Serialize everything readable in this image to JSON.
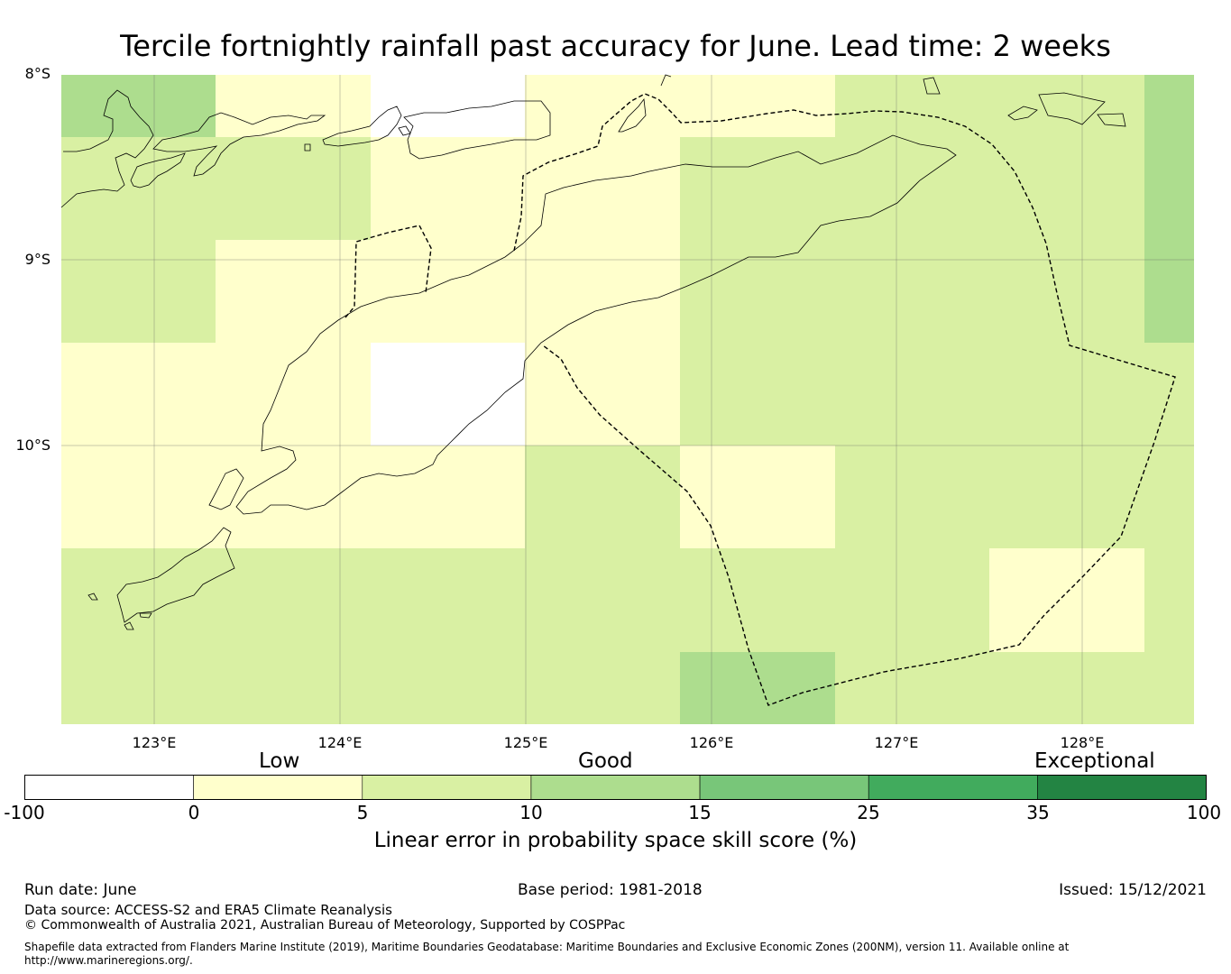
{
  "title": "Tercile fortnightly rainfall past accuracy for June. Lead time: 2 weeks",
  "map": {
    "lat_labels": [
      "8°S",
      "9°S",
      "10°S"
    ],
    "lon_labels": [
      "123°E",
      "124°E",
      "125°E",
      "126°E",
      "127°E",
      "128°E"
    ],
    "colors": {
      "below_0": "#ffffff",
      "0_to_5": "#ffffcc",
      "5_to_10": "#d9f0a3",
      "10_to_15": "#addd8e",
      "15_to_25": "#78c679",
      "25_to_35": "#41ab5d",
      "35_to_100": "#238443"
    }
  },
  "colorbar": {
    "categories": [
      "Low",
      "Good",
      "Exceptional"
    ],
    "ticks": [
      "-100",
      "0",
      "5",
      "10",
      "15",
      "25",
      "35",
      "100"
    ],
    "colors": [
      "#ffffff",
      "#ffffcc",
      "#d9f0a3",
      "#addd8e",
      "#78c679",
      "#41ab5d",
      "#238443"
    ],
    "label": "Linear error in probability space skill score (%)"
  },
  "footer": {
    "run_date": "Run date: June",
    "base_period": "Base period: 1981-2018",
    "issued": "Issued: 15/12/2021",
    "data_source": "Data source: ACCESS-S2 and ERA5 Climate Reanalysis",
    "copyright": "© Commonwealth of Australia 2021, Australian Bureau of Meteorology, Supported by COSPPac",
    "shapefile_note": "Shapefile data extracted from Flanders Marine Institute (2019), Maritime Boundaries Geodatabase: Maritime Boundaries and Exclusive Economic Zones (200NM), version 11. Available online at http://www.marineregions.org/."
  }
}
